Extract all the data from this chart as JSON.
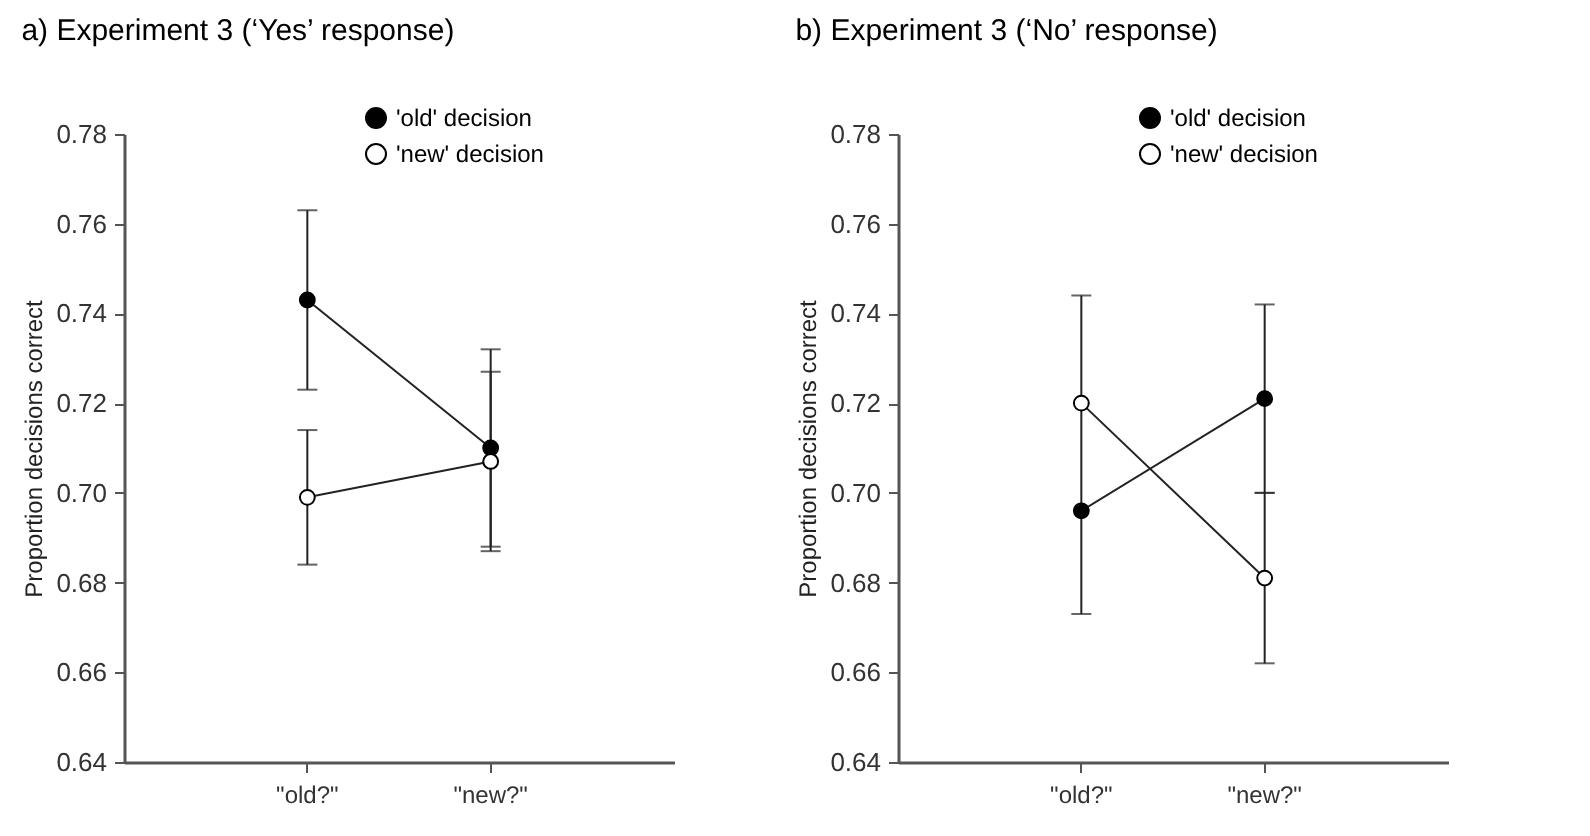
{
  "chart_data": [
    {
      "type": "line",
      "title": "a) Experiment 3 (‘Yes’ response)",
      "ylabel": "Proportion decisions correct",
      "categories": [
        "\"old?\"",
        "\"new?\""
      ],
      "ylim": [
        0.64,
        0.78
      ],
      "yticks": [
        {
          "value": 0.64,
          "label": "0.64"
        },
        {
          "value": 0.66,
          "label": "0.66"
        },
        {
          "value": 0.68,
          "label": "0.68"
        },
        {
          "value": 0.7,
          "label": "0.70"
        },
        {
          "value": 0.72,
          "label": "0.72"
        },
        {
          "value": 0.74,
          "label": "0.74"
        },
        {
          "value": 0.76,
          "label": "0.76"
        },
        {
          "value": 0.78,
          "label": "0.78"
        }
      ],
      "grid": false,
      "legend": "top right",
      "marker": "circle",
      "series": [
        {
          "name": "'old' decision",
          "color": "#000000",
          "values": [
            0.743,
            0.71
          ],
          "errors": [
            [
              0.723,
              0.763
            ],
            [
              0.688,
              0.732
            ]
          ]
        },
        {
          "name": "'new' decision",
          "color": "#ffffff",
          "values": [
            0.699,
            0.707
          ],
          "errors": [
            [
              0.684,
              0.714
            ],
            [
              0.687,
              0.727
            ]
          ]
        }
      ]
    },
    {
      "type": "line",
      "title": "b) Experiment 3 (‘No’ response)",
      "ylabel": "Proportion decisions correct",
      "categories": [
        "\"old?\"",
        "\"new?\""
      ],
      "ylim": [
        0.64,
        0.78
      ],
      "yticks": [
        {
          "value": 0.64,
          "label": "0.64"
        },
        {
          "value": 0.66,
          "label": "0.66"
        },
        {
          "value": 0.68,
          "label": "0.68"
        },
        {
          "value": 0.7,
          "label": "0.70"
        },
        {
          "value": 0.72,
          "label": "0.72"
        },
        {
          "value": 0.74,
          "label": "0.74"
        },
        {
          "value": 0.76,
          "label": "0.76"
        },
        {
          "value": 0.78,
          "label": "0.78"
        }
      ],
      "grid": false,
      "legend": "top right",
      "marker": "circle",
      "series": [
        {
          "name": "'old' decision",
          "color": "#000000",
          "values": [
            0.696,
            0.721
          ],
          "errors": [
            null,
            [
              0.7,
              0.742
            ]
          ]
        },
        {
          "name": "'new' decision",
          "color": "#ffffff",
          "values": [
            0.72,
            0.681
          ],
          "errors": [
            [
              0.673,
              0.744
            ],
            [
              0.662,
              0.7
            ]
          ]
        }
      ]
    }
  ]
}
